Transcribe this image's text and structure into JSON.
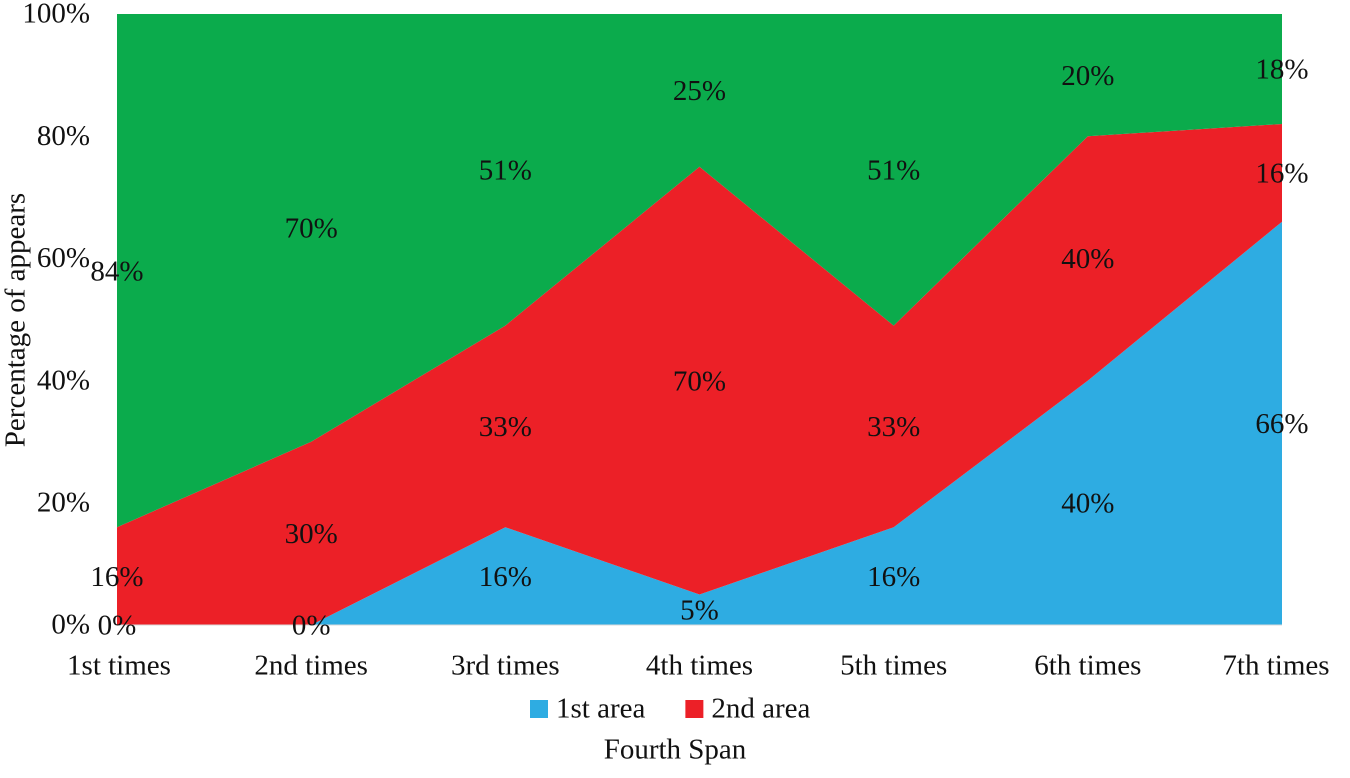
{
  "chart_data": {
    "type": "stacked_area",
    "x_label": "Fourth Span",
    "y_label": "Percentage of appears",
    "categories": [
      "1st times",
      "2nd times",
      "3rd times",
      "4th times",
      "5th times",
      "6th times",
      "7th times"
    ],
    "series": [
      {
        "name": "1st area",
        "color": "#2eace2",
        "values": [
          0,
          0,
          16,
          5,
          16,
          40,
          66
        ],
        "value_labels": [
          "0%",
          "0%",
          "16%",
          "5%",
          "16%",
          "40%",
          "66%"
        ]
      },
      {
        "name": "2nd area",
        "color": "#ec2027",
        "values": [
          16,
          30,
          33,
          70,
          33,
          40,
          16
        ],
        "value_labels": [
          "16%",
          "30%",
          "33%",
          "70%",
          "33%",
          "40%",
          "16%"
        ]
      },
      {
        "color": "#0bab4c",
        "values": [
          84,
          70,
          51,
          25,
          51,
          20,
          18
        ],
        "value_labels": [
          "84%",
          "70%",
          "51%",
          "25%",
          "51%",
          "20%",
          "18%"
        ]
      }
    ],
    "ylim": [
      0,
      100
    ],
    "yticks": [
      {
        "value": 0,
        "label": "0%"
      },
      {
        "value": 20,
        "label": "20%"
      },
      {
        "value": 40,
        "label": "40%"
      },
      {
        "value": 60,
        "label": "60%"
      },
      {
        "value": 80,
        "label": "80%"
      },
      {
        "value": 100,
        "label": "100%"
      }
    ],
    "legend": "bottom"
  }
}
